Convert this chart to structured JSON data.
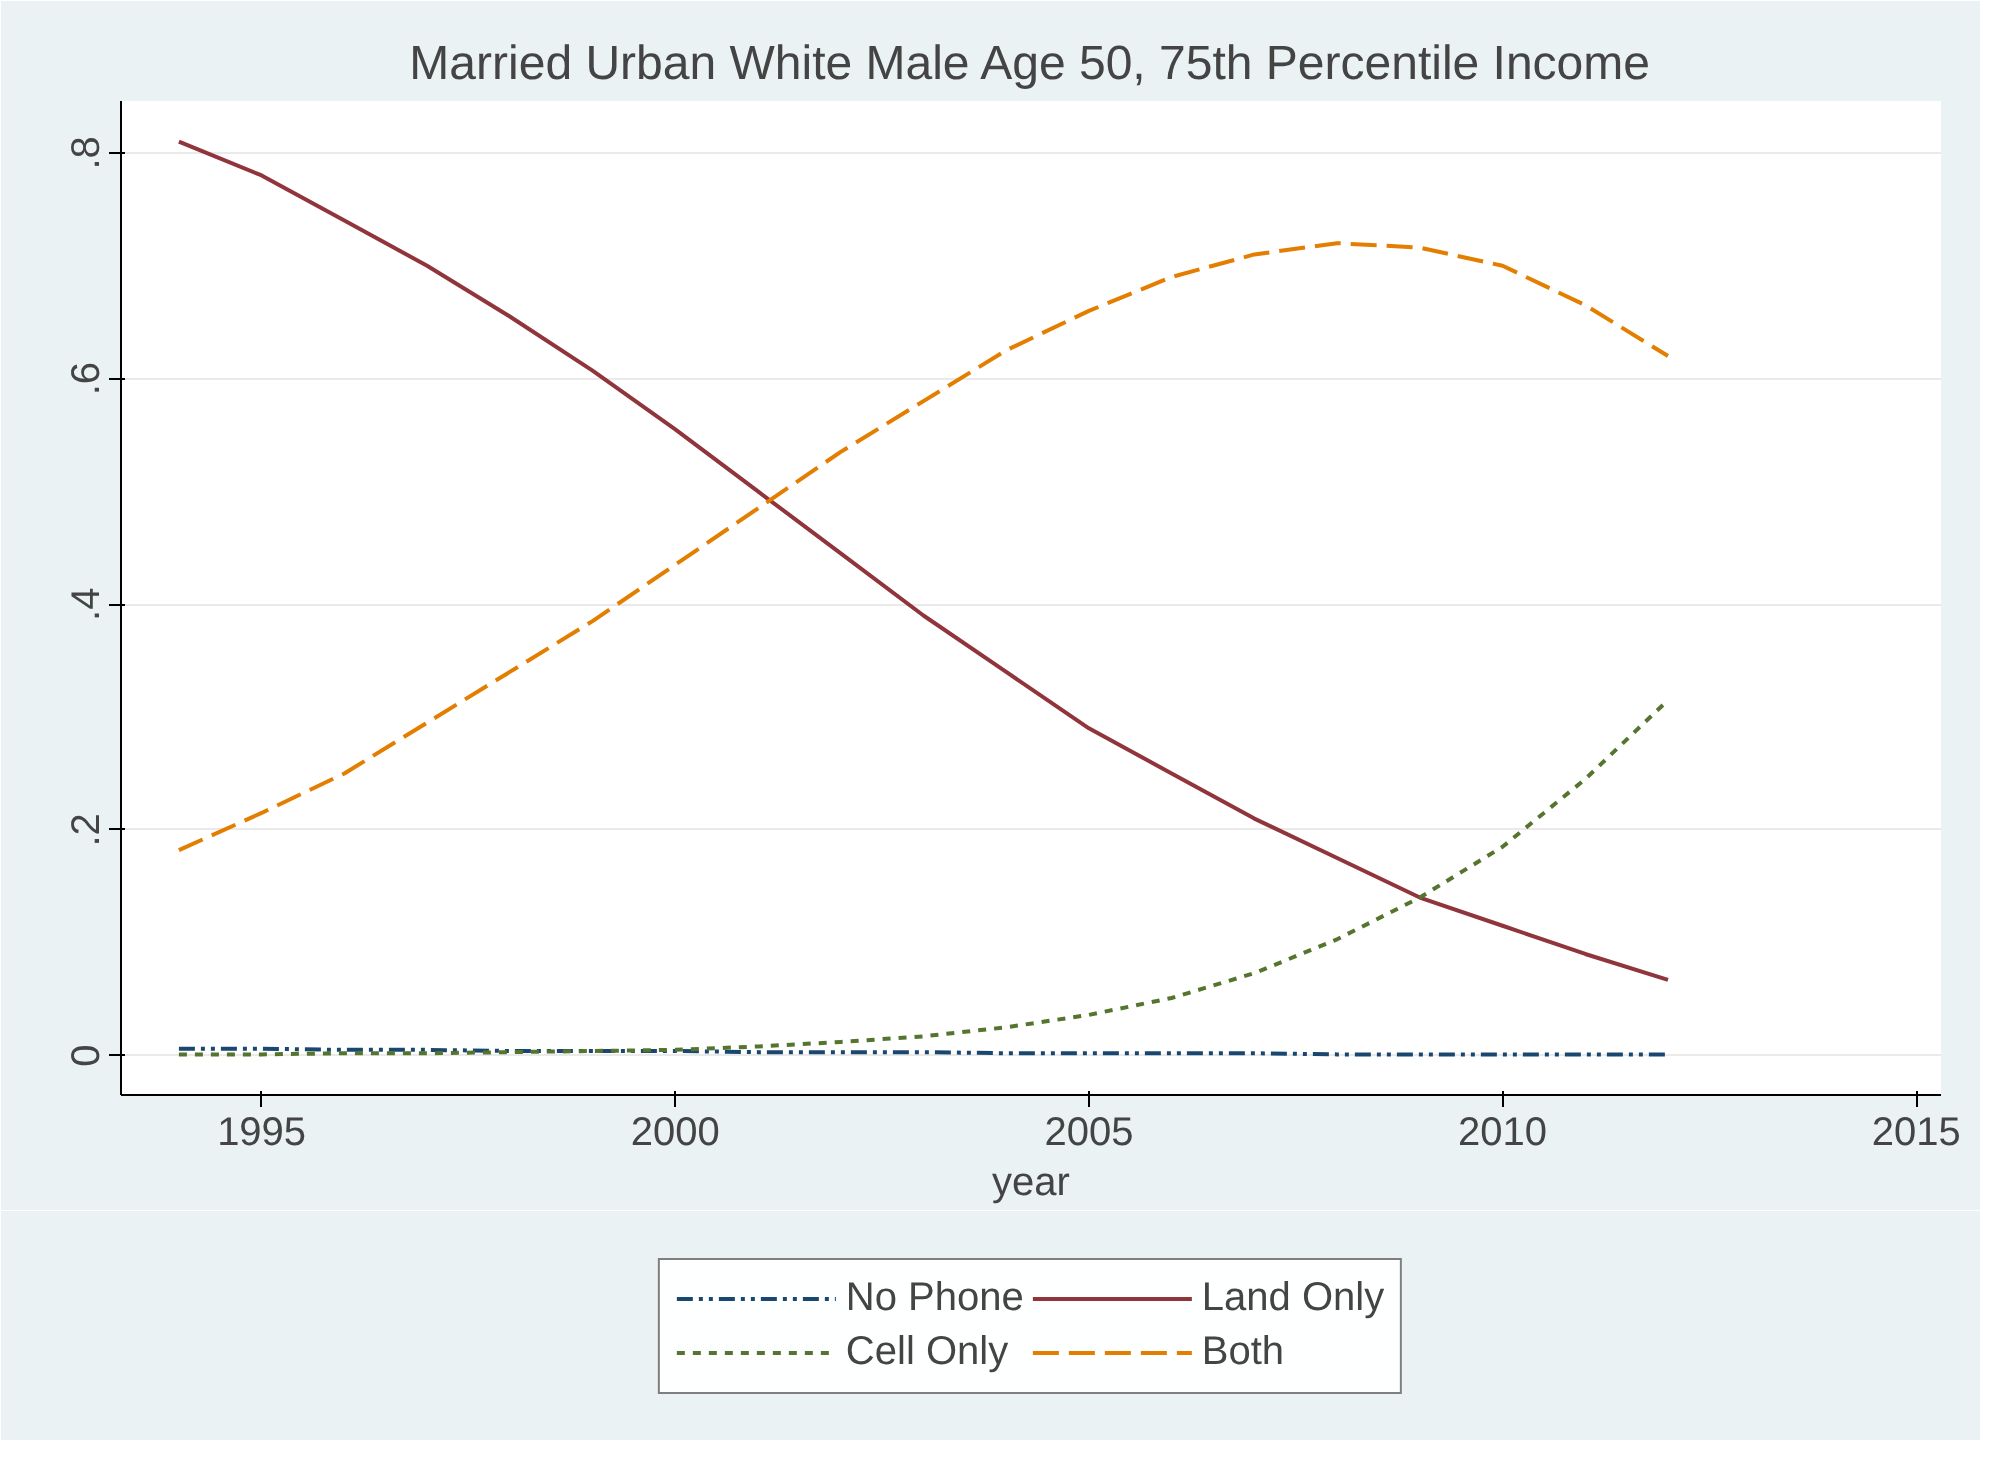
{
  "chart_data": {
    "type": "line",
    "title": "Married Urban White Male Age 50, 75th Percentile Income",
    "xlabel": "year",
    "x": [
      1994,
      1995,
      1996,
      1997,
      1998,
      1999,
      2000,
      2001,
      2002,
      2003,
      2004,
      2005,
      2006,
      2007,
      2008,
      2009,
      2010,
      2011,
      2012
    ],
    "series": [
      {
        "name": "No Phone",
        "color": "#1a476f",
        "line_style": "dashdot",
        "values": [
          0.006,
          0.006,
          0.005,
          0.005,
          0.004,
          0.004,
          0.004,
          0.003,
          0.003,
          0.003,
          0.002,
          0.002,
          0.002,
          0.002,
          0.001,
          0.001,
          0.001,
          0.001,
          0.001
        ]
      },
      {
        "name": "Land Only",
        "color": "#90353b",
        "line_style": "solid",
        "values": [
          0.81,
          0.78,
          0.74,
          0.7,
          0.655,
          0.607,
          0.555,
          0.5,
          0.445,
          0.39,
          0.34,
          0.29,
          0.25,
          0.21,
          0.175,
          0.14,
          0.115,
          0.09,
          0.067
        ]
      },
      {
        "name": "Cell Only",
        "color": "#55752f",
        "line_style": "dashed",
        "values": [
          0.001,
          0.001,
          0.002,
          0.002,
          0.003,
          0.004,
          0.005,
          0.008,
          0.012,
          0.017,
          0.025,
          0.036,
          0.051,
          0.073,
          0.103,
          0.14,
          0.185,
          0.245,
          0.315
        ]
      },
      {
        "name": "Both",
        "color": "#e37e00",
        "line_style": "longdash",
        "values": [
          0.182,
          0.215,
          0.25,
          0.295,
          0.34,
          0.385,
          0.435,
          0.485,
          0.535,
          0.58,
          0.625,
          0.66,
          0.69,
          0.71,
          0.72,
          0.716,
          0.7,
          0.665,
          0.62
        ]
      }
    ],
    "xlim": [
      1993.3,
      2015.3
    ],
    "xticks": [
      1995,
      2000,
      2005,
      2010,
      2015
    ],
    "ylim": [
      -0.035,
      0.846
    ],
    "yticks": [
      0,
      {
        "value": 0.2,
        "label": ".2"
      },
      {
        "value": 0.4,
        "label": ".4"
      },
      {
        "value": 0.6,
        "label": ".6"
      },
      {
        "value": 0.8,
        "label": ".8"
      }
    ],
    "grid": "y",
    "legend": "bottom"
  }
}
